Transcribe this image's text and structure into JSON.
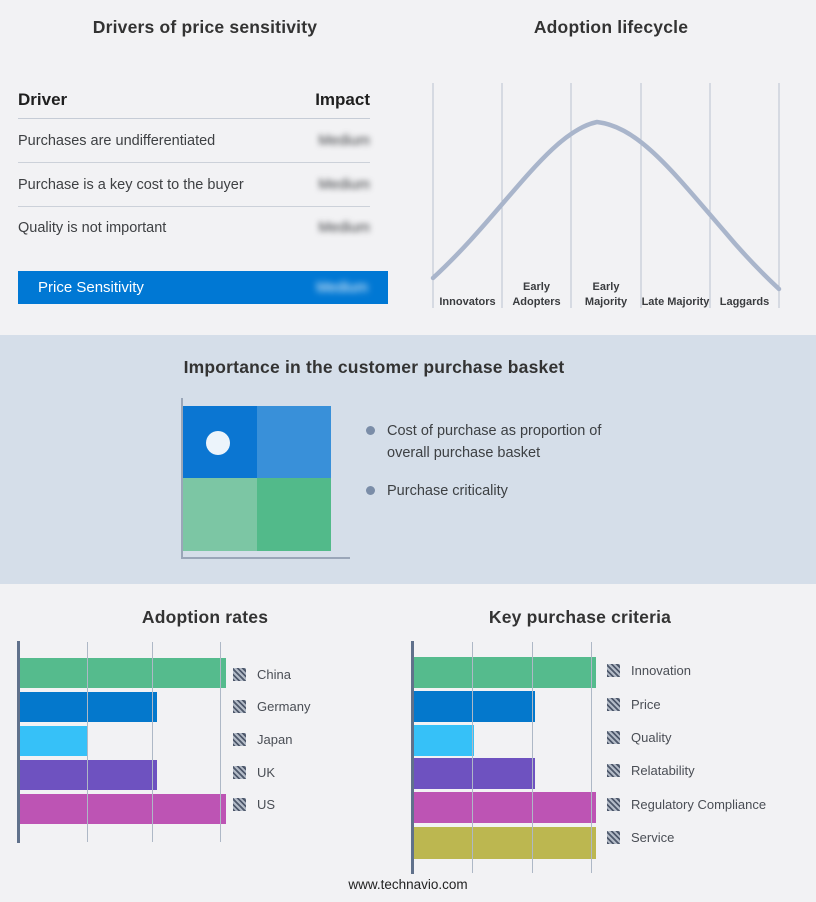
{
  "page": {
    "footer": "www.technavio.com",
    "background": "#f2f2f4",
    "band_background": "#d5dee9",
    "accent_blue": "#0078d4"
  },
  "drivers": {
    "title": "Drivers of price sensitivity",
    "col_driver": "Driver",
    "col_impact": "Impact",
    "rows": [
      {
        "driver": "Purchases are undifferentiated",
        "impact": "Medium"
      },
      {
        "driver": "Purchase is a key cost to the buyer",
        "impact": "Medium"
      },
      {
        "driver": "Quality is not important",
        "impact": "Medium"
      }
    ],
    "highlight": {
      "driver": "Price Sensitivity",
      "impact": "Medium"
    },
    "highlight_color": "#0078d4",
    "impact_values_blurred": true
  },
  "lifecycle": {
    "title": "Adoption lifecycle",
    "stages": [
      "Innovators",
      "Early Adopters",
      "Early Majority",
      "Late Majority",
      "Laggards"
    ],
    "curve_color": "#a9b5cb",
    "gridline_color": "#b9c2cf"
  },
  "basket": {
    "title": "Importance in the customer purchase basket",
    "bullets": [
      "Cost of purchase as proportion of overall purchase basket",
      "Purchase criticality"
    ],
    "quadrant_colors": {
      "top_left": "#0b76d2",
      "top_right": "#3990d9",
      "bottom_left": "#7cc6a4",
      "bottom_right": "#52ba8a"
    },
    "marker_color": "#ecf4fb"
  },
  "adoption_rates": {
    "title": "Adoption rates",
    "categories": [
      "China",
      "Germany",
      "Japan",
      "UK",
      "US"
    ],
    "values": [
      3,
      2,
      1,
      2,
      3
    ],
    "max": 3,
    "colors": [
      "#55bb8d",
      "#0478cc",
      "#36c1f8",
      "#6e52c0",
      "#bd54b4"
    ]
  },
  "purchase_criteria": {
    "title": "Key purchase criteria",
    "categories": [
      "Innovation",
      "Price",
      "Quality",
      "Relatability",
      "Regulatory Compliance",
      "Service"
    ],
    "values": [
      3,
      2,
      1,
      2,
      3,
      3
    ],
    "max": 3,
    "colors": [
      "#55bb8d",
      "#0478cc",
      "#36c1f8",
      "#6e52c0",
      "#bd54b4",
      "#bcb750"
    ]
  },
  "chart_data": [
    {
      "type": "table",
      "title": "Drivers of price sensitivity",
      "columns": [
        "Driver",
        "Impact"
      ],
      "rows": [
        [
          "Purchases are undifferentiated",
          "Medium"
        ],
        [
          "Purchase is a key cost to the buyer",
          "Medium"
        ],
        [
          "Quality is not important",
          "Medium"
        ],
        [
          "Price Sensitivity",
          "Medium"
        ]
      ],
      "note": "Impact values are blurred in the source image; last row highlighted blue"
    },
    {
      "type": "line",
      "title": "Adoption lifecycle",
      "categories": [
        "Innovators",
        "Early Adopters",
        "Early Majority",
        "Late Majority",
        "Laggards"
      ],
      "description": "Bell curve peaking over Early Majority, no numeric axis",
      "grid": "vertical segment dividers only"
    },
    {
      "type": "bar",
      "title": "Adoption rates",
      "orientation": "horizontal",
      "categories": [
        "China",
        "Germany",
        "Japan",
        "UK",
        "US"
      ],
      "values": [
        3,
        2,
        1,
        2,
        3
      ],
      "xlim": [
        0,
        3
      ],
      "note": "No numeric labels; bars span 1, 2 or 3 gridline intervals",
      "legend_position": "right"
    },
    {
      "type": "bar",
      "title": "Key purchase criteria",
      "orientation": "horizontal",
      "categories": [
        "Innovation",
        "Price",
        "Quality",
        "Relatability",
        "Regulatory Compliance",
        "Service"
      ],
      "values": [
        3,
        2,
        1,
        2,
        3,
        3
      ],
      "xlim": [
        0,
        3
      ],
      "note": "No numeric labels; bars span 1, 2 or 3 gridline intervals",
      "legend_position": "right"
    }
  ]
}
